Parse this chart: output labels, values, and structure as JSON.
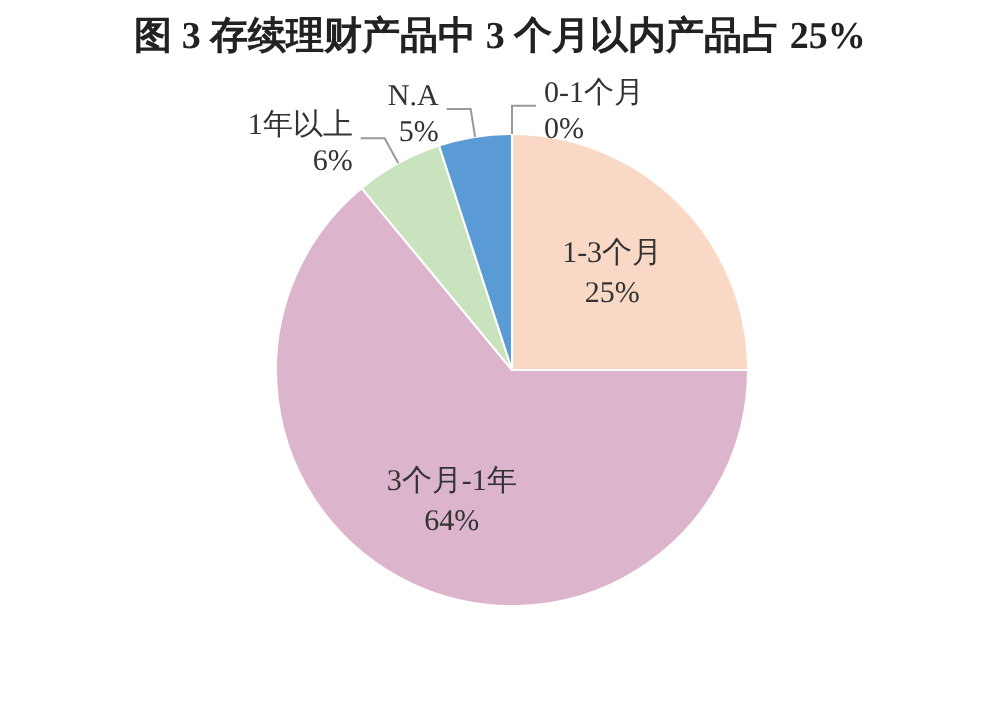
{
  "chart_data": {
    "type": "pie",
    "title": "图  3 存续理财产品中 3 个月以内产品占 25%",
    "categories": [
      "0-1个月",
      "1-3个月",
      "3个月-1年",
      "1年以上",
      "N.A"
    ],
    "values": [
      0,
      25,
      64,
      6,
      5
    ],
    "colors": [
      "#5b9bd5",
      "#f9d9c6",
      "#dcb4cb",
      "#c8e3bd",
      "#5b9bd5"
    ],
    "value_labels": [
      "0%",
      "25%",
      "64%",
      "6%",
      "5%"
    ]
  }
}
